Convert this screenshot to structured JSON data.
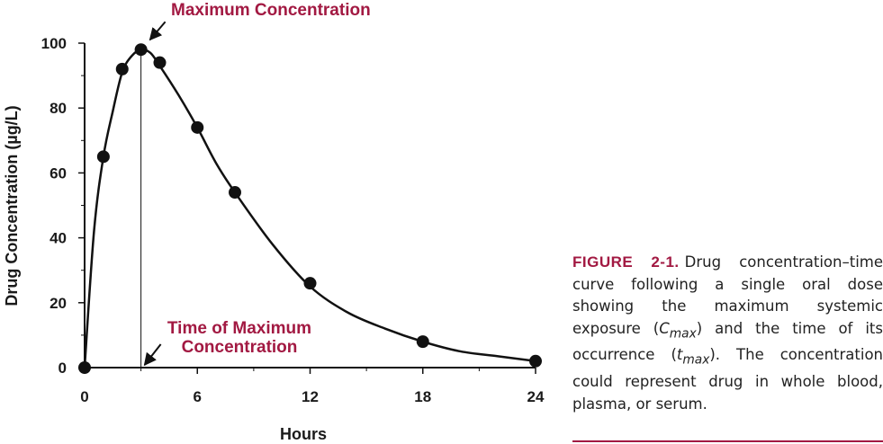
{
  "colors": {
    "accent": "#a21942",
    "text": "#1a1a1a",
    "curve": "#111111"
  },
  "chart_data": {
    "type": "line",
    "title": "",
    "xlabel": "Hours",
    "ylabel": "Drug Concentration (µg/L)",
    "xlim": [
      0,
      24
    ],
    "ylim": [
      0,
      100
    ],
    "x_ticks": [
      "0",
      "6",
      "12",
      "18",
      "24"
    ],
    "y_ticks": [
      "0",
      "20",
      "40",
      "60",
      "80",
      "100"
    ],
    "grid": false,
    "series": [
      {
        "curve_x": [
          0,
          0.5,
          1,
          1.5,
          2,
          2.5,
          3,
          3.5,
          4,
          5,
          6,
          7,
          8,
          10,
          12,
          14,
          16,
          18,
          20,
          22,
          24
        ],
        "curve_y": [
          0,
          42,
          65,
          79,
          91,
          96,
          98,
          97,
          93,
          84,
          74,
          63,
          54,
          38,
          25,
          17,
          12,
          8,
          5,
          3.5,
          2
        ],
        "points_x": [
          0,
          1,
          2,
          3,
          4,
          6,
          8,
          12,
          18,
          24
        ],
        "points_y": [
          0,
          65,
          92,
          98,
          94,
          74,
          54,
          26,
          8,
          2
        ]
      }
    ],
    "annotations": {
      "cmax_label": "Maximum Concentration",
      "tmax_label_line1": "Time of Maximum",
      "tmax_label_line2": "Concentration",
      "tmax_x": 3,
      "cmax_y": 98
    }
  },
  "caption": {
    "label": "FIGURE 2-1.",
    "text_before_cmax": "Drug concentration–time curve following a single oral dose showing the maximum systemic exposure (",
    "cmax_base": "C",
    "cmax_sub": "max",
    "text_between": ") and the time of its occurrence (",
    "tmax_base": "t",
    "tmax_sub": "max",
    "text_after": "). The concentration could represent drug in whole blood, plasma, or serum."
  }
}
